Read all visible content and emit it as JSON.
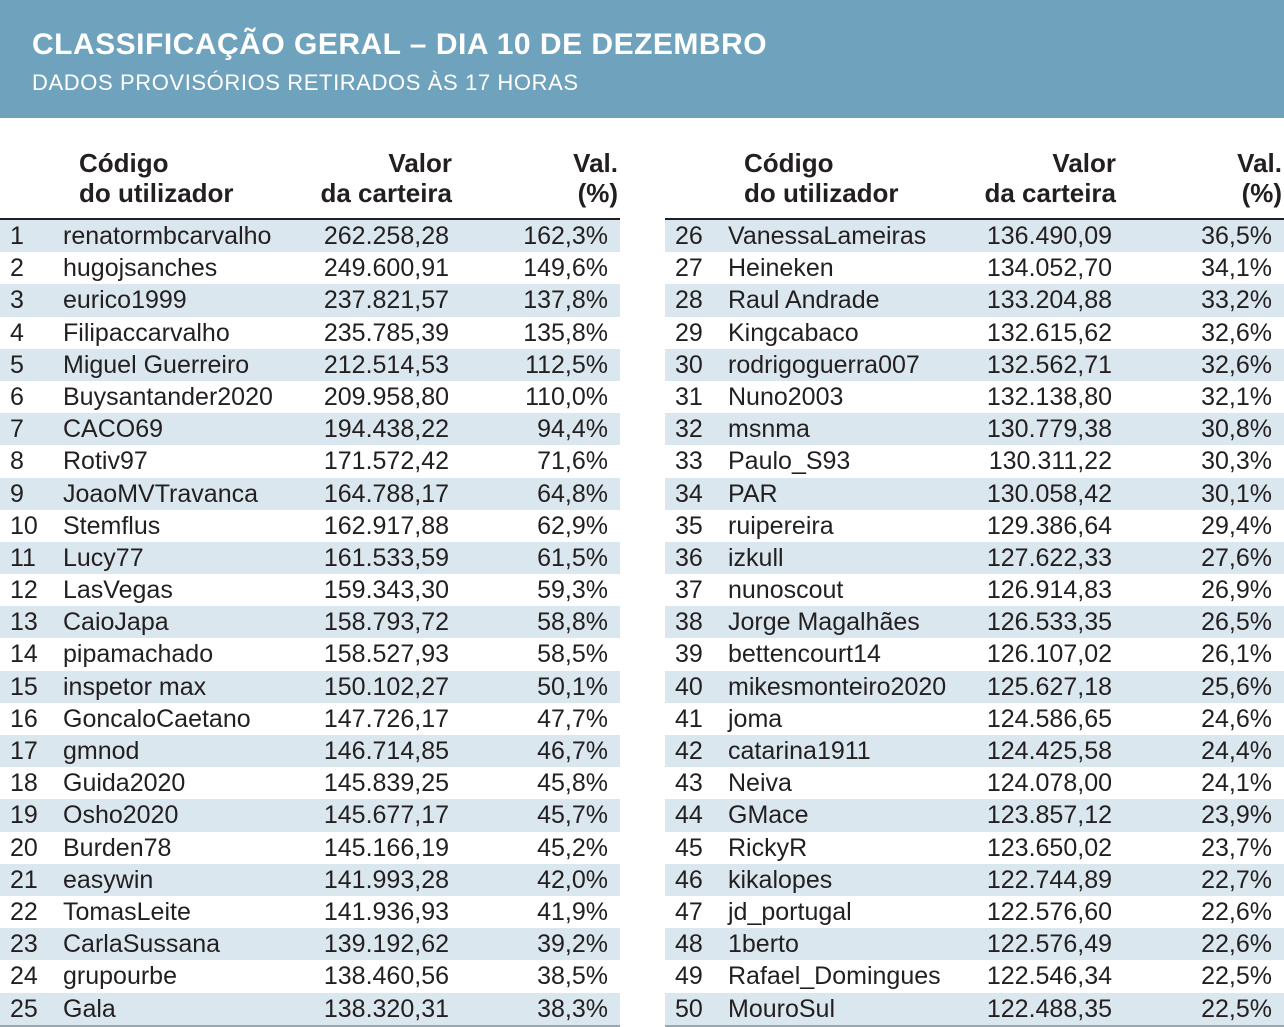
{
  "header": {
    "title": "CLASSIFICAÇÃO GERAL – DIA 10 DE DEZEMBRO",
    "subtitle": "DADOS PROVISÓRIOS RETIRADOS ÀS 17 HORAS"
  },
  "columns": {
    "user": "Código\ndo utilizador",
    "value": "Valor\nda carteira",
    "pct": "Val.\n(%)"
  },
  "colors": {
    "banner": "#6fa3bd",
    "stripe": "#dbe7ef"
  },
  "left_rows": [
    {
      "pos": "1",
      "user": "renatormbcarvalho",
      "value": "262.258,28",
      "pct": "162,3%"
    },
    {
      "pos": "2",
      "user": "hugojsanches",
      "value": "249.600,91",
      "pct": "149,6%"
    },
    {
      "pos": "3",
      "user": "eurico1999",
      "value": "237.821,57",
      "pct": "137,8%"
    },
    {
      "pos": "4",
      "user": "Filipaccarvalho",
      "value": "235.785,39",
      "pct": "135,8%"
    },
    {
      "pos": "5",
      "user": "Miguel Guerreiro",
      "value": "212.514,53",
      "pct": "112,5%"
    },
    {
      "pos": "6",
      "user": "Buysantander2020",
      "value": "209.958,80",
      "pct": "110,0%"
    },
    {
      "pos": "7",
      "user": "CACO69",
      "value": "194.438,22",
      "pct": "94,4%"
    },
    {
      "pos": "8",
      "user": "Rotiv97",
      "value": "171.572,42",
      "pct": "71,6%"
    },
    {
      "pos": "9",
      "user": "JoaoMVTravanca",
      "value": "164.788,17",
      "pct": "64,8%"
    },
    {
      "pos": "10",
      "user": "Stemflus",
      "value": "162.917,88",
      "pct": "62,9%"
    },
    {
      "pos": "11",
      "user": "Lucy77",
      "value": "161.533,59",
      "pct": "61,5%"
    },
    {
      "pos": "12",
      "user": "LasVegas",
      "value": "159.343,30",
      "pct": "59,3%"
    },
    {
      "pos": "13",
      "user": "CaioJapa",
      "value": "158.793,72",
      "pct": "58,8%"
    },
    {
      "pos": "14",
      "user": "pipamachado",
      "value": "158.527,93",
      "pct": "58,5%"
    },
    {
      "pos": "15",
      "user": "inspetor max",
      "value": "150.102,27",
      "pct": "50,1%"
    },
    {
      "pos": "16",
      "user": "GoncaloCaetano",
      "value": "147.726,17",
      "pct": "47,7%"
    },
    {
      "pos": "17",
      "user": "gmnod",
      "value": "146.714,85",
      "pct": "46,7%"
    },
    {
      "pos": "18",
      "user": "Guida2020",
      "value": "145.839,25",
      "pct": "45,8%"
    },
    {
      "pos": "19",
      "user": "Osho2020",
      "value": "145.677,17",
      "pct": "45,7%"
    },
    {
      "pos": "20",
      "user": "Burden78",
      "value": "145.166,19",
      "pct": "45,2%"
    },
    {
      "pos": "21",
      "user": "easywin",
      "value": "141.993,28",
      "pct": "42,0%"
    },
    {
      "pos": "22",
      "user": "TomasLeite",
      "value": "141.936,93",
      "pct": "41,9%"
    },
    {
      "pos": "23",
      "user": "CarlaSussana",
      "value": "139.192,62",
      "pct": "39,2%"
    },
    {
      "pos": "24",
      "user": "grupourbe",
      "value": "138.460,56",
      "pct": "38,5%"
    },
    {
      "pos": "25",
      "user": "Gala",
      "value": "138.320,31",
      "pct": "38,3%"
    }
  ],
  "right_rows": [
    {
      "pos": "26",
      "user": "VanessaLameiras",
      "value": "136.490,09",
      "pct": "36,5%"
    },
    {
      "pos": "27",
      "user": "Heineken",
      "value": "134.052,70",
      "pct": "34,1%"
    },
    {
      "pos": "28",
      "user": "Raul Andrade",
      "value": "133.204,88",
      "pct": "33,2%"
    },
    {
      "pos": "29",
      "user": "Kingcabaco",
      "value": "132.615,62",
      "pct": "32,6%"
    },
    {
      "pos": "30",
      "user": "rodrigoguerra007",
      "value": "132.562,71",
      "pct": "32,6%"
    },
    {
      "pos": "31",
      "user": "Nuno2003",
      "value": "132.138,80",
      "pct": "32,1%"
    },
    {
      "pos": "32",
      "user": "msnma",
      "value": "130.779,38",
      "pct": "30,8%"
    },
    {
      "pos": "33",
      "user": "Paulo_S93",
      "value": "130.311,22",
      "pct": "30,3%"
    },
    {
      "pos": "34",
      "user": "PAR",
      "value": "130.058,42",
      "pct": "30,1%"
    },
    {
      "pos": "35",
      "user": "ruipereira",
      "value": "129.386,64",
      "pct": "29,4%"
    },
    {
      "pos": "36",
      "user": "izkull",
      "value": "127.622,33",
      "pct": "27,6%"
    },
    {
      "pos": "37",
      "user": "nunoscout",
      "value": "126.914,83",
      "pct": "26,9%"
    },
    {
      "pos": "38",
      "user": "Jorge Magalhães",
      "value": "126.533,35",
      "pct": "26,5%"
    },
    {
      "pos": "39",
      "user": "bettencourt14",
      "value": "126.107,02",
      "pct": "26,1%"
    },
    {
      "pos": "40",
      "user": "mikesmonteiro2020",
      "value": "125.627,18",
      "pct": "25,6%"
    },
    {
      "pos": "41",
      "user": "joma",
      "value": "124.586,65",
      "pct": "24,6%"
    },
    {
      "pos": "42",
      "user": "catarina1911",
      "value": "124.425,58",
      "pct": "24,4%"
    },
    {
      "pos": "43",
      "user": "Neiva",
      "value": "124.078,00",
      "pct": "24,1%"
    },
    {
      "pos": "44",
      "user": "GMace",
      "value": "123.857,12",
      "pct": "23,9%"
    },
    {
      "pos": "45",
      "user": "RickyR",
      "value": "123.650,02",
      "pct": "23,7%"
    },
    {
      "pos": "46",
      "user": "kikalopes",
      "value": "122.744,89",
      "pct": "22,7%"
    },
    {
      "pos": "47",
      "user": "jd_portugal",
      "value": "122.576,60",
      "pct": "22,6%"
    },
    {
      "pos": "48",
      "user": "1berto",
      "value": "122.576,49",
      "pct": "22,6%"
    },
    {
      "pos": "49",
      "user": "Rafael_Domingues",
      "value": "122.546,34",
      "pct": "22,5%"
    },
    {
      "pos": "50",
      "user": "MouroSul",
      "value": "122.488,35",
      "pct": "22,5%"
    }
  ]
}
